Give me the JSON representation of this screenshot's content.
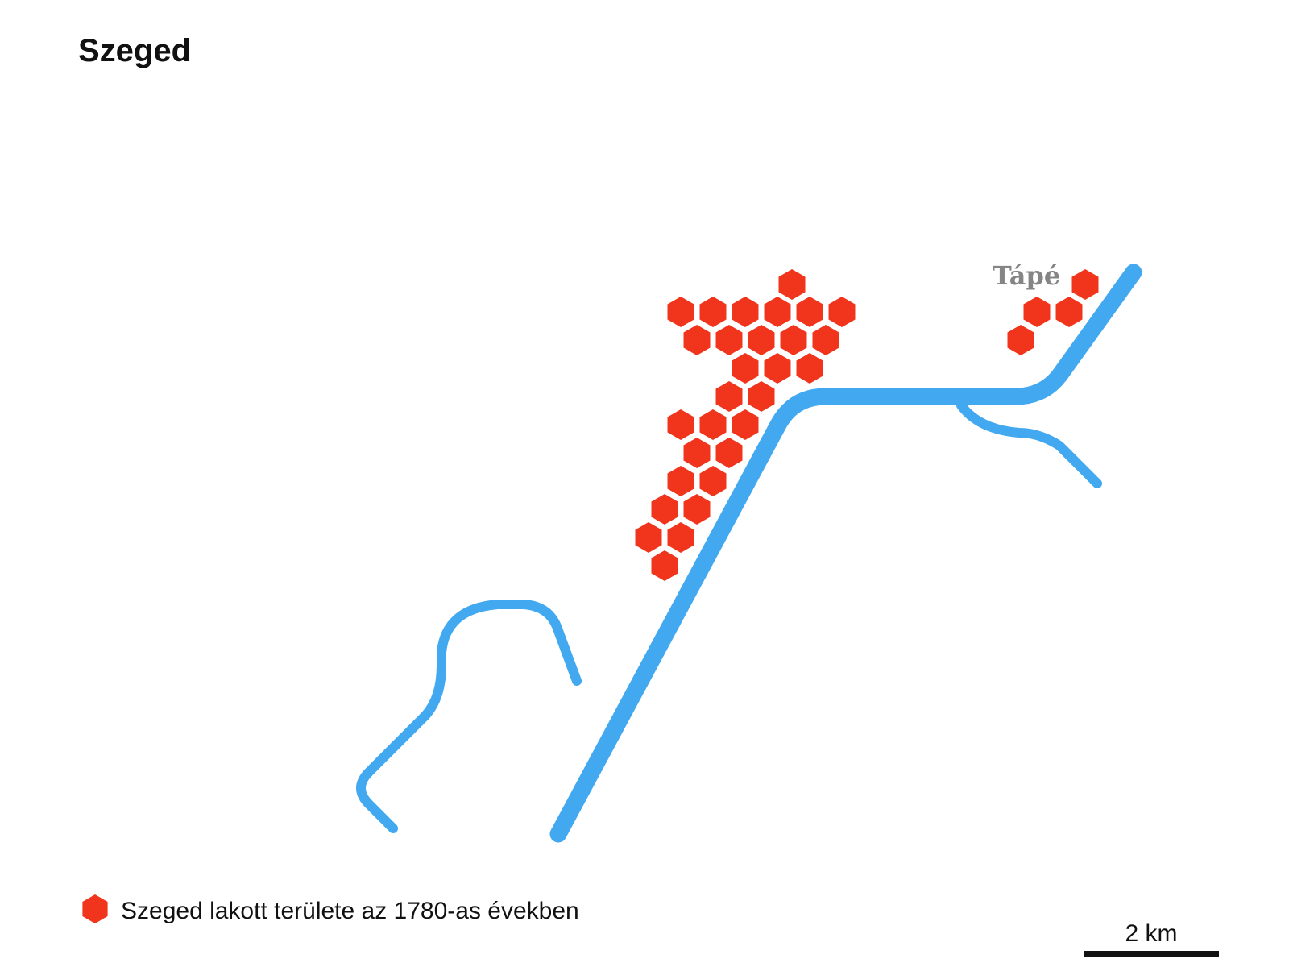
{
  "map": {
    "title": "Szeged",
    "place_label": "Tápé",
    "legend": {
      "label": "Szeged lakott területe az 1780-as években",
      "symbol": "hexagon-icon"
    },
    "scale_bar": {
      "label": "2 km"
    },
    "colors": {
      "river": "#42a8f0",
      "settlement": "#f0351c",
      "label_gray": "#858585",
      "text": "#111111"
    },
    "features": [
      "main-river",
      "side-channel",
      "oxbow-river"
    ]
  }
}
